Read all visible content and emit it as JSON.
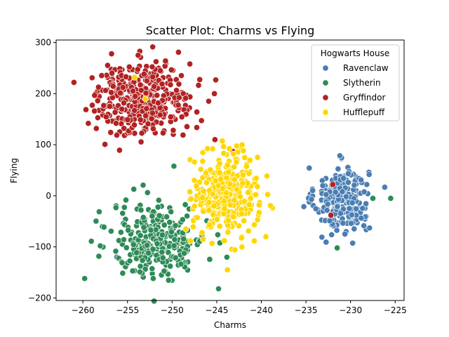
{
  "chart_data": {
    "type": "scatter",
    "title": "Scatter Plot: Charms vs Flying",
    "xlabel": "Charms",
    "ylabel": "Flying",
    "xlim": [
      -263,
      -224
    ],
    "ylim": [
      -205,
      305
    ],
    "x_ticks": [
      -260,
      -255,
      -250,
      -245,
      -240,
      -235,
      -230,
      -225
    ],
    "y_ticks": [
      -200,
      -100,
      0,
      100,
      200,
      300
    ],
    "x_tick_labels": [
      "−260",
      "−255",
      "−250",
      "−245",
      "−240",
      "−235",
      "−230",
      "−225"
    ],
    "y_tick_labels": [
      "−200",
      "−100",
      "0",
      "100",
      "200",
      "300"
    ],
    "grid": false,
    "legend": {
      "title": "Hogwarts House",
      "placement": "top-right"
    },
    "series": [
      {
        "name": "Ravenclaw",
        "color": "#4A7EB3",
        "center": [
          -231,
          -8
        ],
        "spread": [
          1.5,
          32
        ],
        "count": 270,
        "extra_points": [
          [
            -256.2,
            -120
          ],
          [
            -254.8,
            230
          ],
          [
            -231.5,
            -102
          ]
        ]
      },
      {
        "name": "Slytherin",
        "color": "#2E8B57",
        "center": [
          -251.5,
          -88
        ],
        "spread": [
          2.6,
          36
        ],
        "count": 300,
        "extra_points": [
          [
            -259.8,
            -162
          ],
          [
            -244.8,
            -182
          ],
          [
            -225.5,
            -5
          ],
          [
            -227.5,
            -5
          ],
          [
            -249.8,
            58
          ],
          [
            -231.5,
            -102
          ]
        ]
      },
      {
        "name": "Gryffindor",
        "color": "#B22222",
        "center": [
          -253.2,
          190
        ],
        "spread": [
          2.8,
          36
        ],
        "count": 380,
        "extra_points": [
          [
            -261,
            222
          ],
          [
            -245.2,
            110
          ],
          [
            -243.2,
            87
          ],
          [
            -232.2,
            -38
          ],
          [
            -232.0,
            22
          ],
          [
            -244.2,
            -30
          ],
          [
            -242.6,
            40
          ]
        ]
      },
      {
        "name": "Hufflepuff",
        "color": "#FFD700",
        "center": [
          -244,
          3
        ],
        "spread": [
          1.8,
          40
        ],
        "count": 340,
        "extra_points": [
          [
            -239.5,
            -80
          ],
          [
            -254.2,
            232
          ],
          [
            -253.0,
            190
          ],
          [
            -243.8,
            -145
          ]
        ]
      }
    ]
  }
}
